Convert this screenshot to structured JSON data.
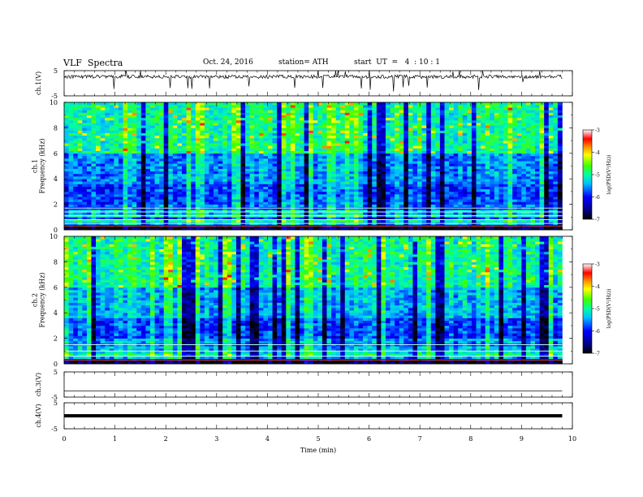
{
  "header": {
    "title": "VLF  Spectra",
    "date": "Oct. 24, 2016",
    "station": "station= ATH",
    "start": "start  UT  =   4  : 10 : 1"
  },
  "chart_data": [
    {
      "type": "line",
      "panel": "ch1-waveform",
      "ylabel": "ch.1(V)",
      "ylim": [
        -5,
        5
      ],
      "yticks": [
        "5",
        "-5"
      ],
      "x_range_min": [
        0,
        9.8
      ],
      "baseline_value_V": 2.6
    },
    {
      "type": "heatmap",
      "panel": "ch1-spectrogram",
      "ylabel": "ch.1\nFrequency  (kHz)",
      "ylim": [
        0,
        10
      ],
      "yticks": [
        "0",
        "2",
        "4",
        "6",
        "8",
        "10"
      ],
      "colorbar": {
        "label": "log(PSD(V²/Hz))",
        "range": [
          -7,
          -3
        ],
        "ticks": [
          "-3",
          "-4",
          "-5",
          "-6",
          "-7"
        ]
      }
    },
    {
      "type": "heatmap",
      "panel": "ch2-spectrogram",
      "ylabel": "ch.2\nFrequency  (kHz)",
      "ylim": [
        0,
        10
      ],
      "yticks": [
        "0",
        "2",
        "4",
        "6",
        "8",
        "10"
      ],
      "colorbar": {
        "label": "log(PSD(V²/Hz))",
        "range": [
          -7,
          -3
        ],
        "ticks": [
          "-3",
          "-4",
          "-5",
          "-6",
          "-7"
        ]
      }
    },
    {
      "type": "line",
      "panel": "ch3-waveform",
      "ylabel": "ch.3(V)",
      "ylim": [
        -5,
        5
      ],
      "yticks": [
        "5",
        "-5"
      ],
      "baseline_value_V": -2.5
    },
    {
      "type": "line",
      "panel": "ch4-waveform",
      "ylabel": "ch.4(V)",
      "ylim": [
        -5,
        5
      ],
      "yticks": [
        "5",
        "-5"
      ],
      "baseline_value_V": 0
    }
  ],
  "x_axis": {
    "label": "Time  (min)",
    "range": [
      0,
      10
    ],
    "ticks": [
      "0",
      "1",
      "2",
      "3",
      "4",
      "5",
      "6",
      "7",
      "8",
      "9",
      "10"
    ]
  }
}
